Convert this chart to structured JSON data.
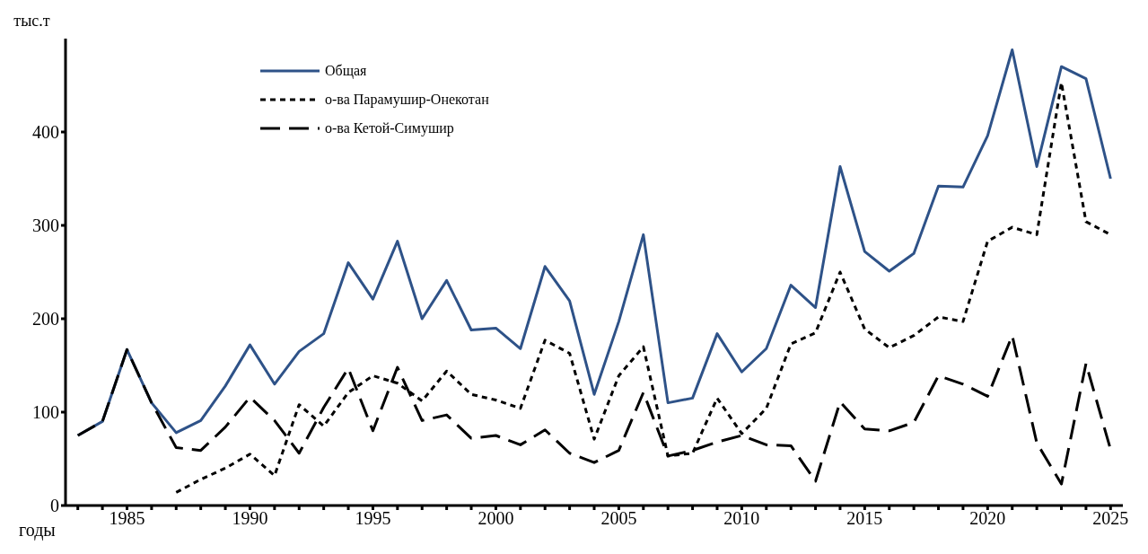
{
  "chart_data": {
    "type": "line",
    "xlabel": "годы",
    "ylabel": "тыс.т",
    "x": [
      1983,
      1984,
      1985,
      1986,
      1987,
      1988,
      1989,
      1990,
      1991,
      1992,
      1993,
      1994,
      1995,
      1996,
      1997,
      1998,
      1999,
      2000,
      2001,
      2002,
      2003,
      2004,
      2005,
      2006,
      2007,
      2008,
      2009,
      2010,
      2011,
      2012,
      2013,
      2014,
      2015,
      2016,
      2017,
      2018,
      2019,
      2020,
      2021,
      2022,
      2023,
      2024,
      2025
    ],
    "series": [
      {
        "name": "Общая",
        "color": "#2e5288",
        "line_style": "solid",
        "values": [
          75,
          90,
          167,
          110,
          78,
          91,
          128,
          172,
          130,
          165,
          184,
          260,
          221,
          283,
          200,
          241,
          188,
          190,
          168,
          256,
          219,
          119,
          197,
          290,
          110,
          115,
          184,
          143,
          168,
          236,
          212,
          363,
          272,
          251,
          270,
          342,
          341,
          396,
          488,
          363,
          470,
          457,
          350
        ]
      },
      {
        "name": "о-ва Парамушир-Онекотан",
        "color": "#000000",
        "line_style": "dotted",
        "values": [
          null,
          null,
          null,
          null,
          14,
          28,
          40,
          55,
          32,
          108,
          85,
          121,
          139,
          131,
          112,
          144,
          119,
          113,
          104,
          177,
          163,
          71,
          139,
          170,
          53,
          56,
          115,
          77,
          104,
          173,
          185,
          250,
          189,
          169,
          182,
          202,
          197,
          283,
          298,
          290,
          453,
          304,
          290
        ]
      },
      {
        "name": "о-ва Кетой-Симушир",
        "color": "#000000",
        "line_style": "dashed",
        "values": [
          75,
          90,
          167,
          110,
          62,
          59,
          84,
          116,
          91,
          56,
          105,
          147,
          80,
          148,
          91,
          97,
          72,
          75,
          65,
          81,
          56,
          46,
          59,
          121,
          53,
          59,
          68,
          75,
          65,
          64,
          26,
          111,
          82,
          80,
          89,
          139,
          130,
          117,
          182,
          67,
          23,
          152,
          60
        ]
      }
    ],
    "xlim": [
      1982.5,
      2025.5
    ],
    "xticks": [
      {
        "value": 1983,
        "label": null
      },
      {
        "value": 1984,
        "label": null
      },
      1985,
      {
        "value": 1986,
        "label": null
      },
      {
        "value": 1987,
        "label": null
      },
      {
        "value": 1988,
        "label": null
      },
      {
        "value": 1989,
        "label": null
      },
      1990,
      {
        "value": 1991,
        "label": null
      },
      {
        "value": 1992,
        "label": null
      },
      {
        "value": 1993,
        "label": null
      },
      {
        "value": 1994,
        "label": null
      },
      1995,
      {
        "value": 1996,
        "label": null
      },
      {
        "value": 1997,
        "label": null
      },
      {
        "value": 1998,
        "label": null
      },
      {
        "value": 1999,
        "label": null
      },
      2000,
      {
        "value": 2001,
        "label": null
      },
      {
        "value": 2002,
        "label": null
      },
      {
        "value": 2003,
        "label": null
      },
      {
        "value": 2004,
        "label": null
      },
      2005,
      {
        "value": 2006,
        "label": null
      },
      {
        "value": 2007,
        "label": null
      },
      {
        "value": 2008,
        "label": null
      },
      {
        "value": 2009,
        "label": null
      },
      2010,
      {
        "value": 2011,
        "label": null
      },
      {
        "value": 2012,
        "label": null
      },
      {
        "value": 2013,
        "label": null
      },
      {
        "value": 2014,
        "label": null
      },
      2015,
      {
        "value": 2016,
        "label": null
      },
      {
        "value": 2017,
        "label": null
      },
      {
        "value": 2018,
        "label": null
      },
      {
        "value": 2019,
        "label": null
      },
      2020,
      {
        "value": 2021,
        "label": null
      },
      {
        "value": 2022,
        "label": null
      },
      {
        "value": 2023,
        "label": null
      },
      {
        "value": 2024,
        "label": null
      },
      2025
    ],
    "ylim": [
      0,
      500
    ],
    "yticks": [
      0,
      100,
      200,
      300,
      400
    ],
    "grid": false,
    "legend": "top",
    "marker": "none"
  }
}
